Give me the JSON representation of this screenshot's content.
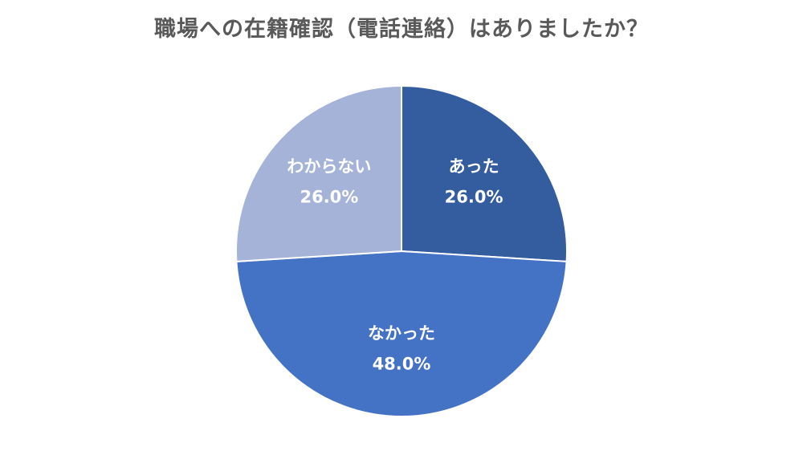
{
  "chart_data": {
    "type": "pie",
    "title": "職場への在籍確認（電話連絡）はありましたか？",
    "slices": [
      {
        "label": "あった",
        "value": 26.0,
        "display": "26.0%",
        "color": "#345DA0"
      },
      {
        "label": "なかった",
        "value": 48.0,
        "display": "48.0%",
        "color": "#4472C4"
      },
      {
        "label": "わからない",
        "value": 26.0,
        "display": "26.0%",
        "color": "#A5B3D8"
      }
    ],
    "start": "12 o'clock",
    "direction": "clockwise",
    "legend": "none"
  }
}
